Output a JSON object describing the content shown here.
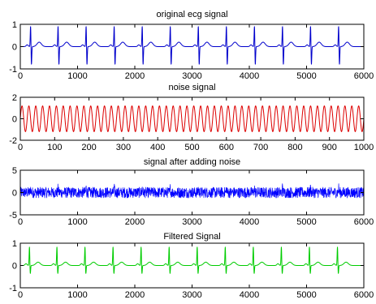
{
  "chart_data": [
    {
      "type": "line",
      "title": "original ecg signal",
      "xlim": [
        0,
        6000
      ],
      "ylim": [
        -1,
        1
      ],
      "xticks": [
        0,
        1000,
        2000,
        3000,
        4000,
        5000,
        6000
      ],
      "yticks": [
        -1,
        0,
        1
      ],
      "grid": false,
      "series": [
        {
          "color": "#0000cc",
          "waveform": "ecg",
          "beat_positions": [
            180,
            660,
            1150,
            1640,
            2130,
            2620,
            3110,
            3600,
            4090,
            4580,
            5070,
            5560
          ],
          "r_peak": 0.95,
          "s_trough": -0.85,
          "baseline": 0.0,
          "t_wave_height": 0.2
        }
      ]
    },
    {
      "type": "line",
      "title": "noise signal",
      "xlim": [
        0,
        1000
      ],
      "ylim": [
        -2,
        2
      ],
      "xticks": [
        0,
        100,
        200,
        300,
        400,
        500,
        600,
        700,
        800,
        900,
        1000
      ],
      "yticks": [
        -2,
        0,
        2
      ],
      "grid": false,
      "series": [
        {
          "color": "#dd0000",
          "waveform": "sine",
          "amplitude": 1.2,
          "period": 20
        }
      ]
    },
    {
      "type": "line",
      "title": "signal after adding noise",
      "xlim": [
        0,
        6000
      ],
      "ylim": [
        -5,
        5
      ],
      "xticks": [
        0,
        1000,
        2000,
        3000,
        4000,
        5000,
        6000
      ],
      "yticks": [
        -5,
        0,
        5
      ],
      "grid": false,
      "series": [
        {
          "color": "#0000ff",
          "waveform": "noisy-ecg",
          "noise_amplitude": 1.2,
          "beat_positions": [
            180,
            660,
            1150,
            1640,
            2130,
            2620,
            3110,
            3600,
            4090,
            4580,
            5070,
            5560
          ],
          "r_peak": 2.0
        }
      ]
    },
    {
      "type": "line",
      "title": "Filtered Signal",
      "xlim": [
        0,
        6000
      ],
      "ylim": [
        -1,
        1
      ],
      "xticks": [
        0,
        1000,
        2000,
        3000,
        4000,
        5000,
        6000
      ],
      "yticks": [
        -1,
        0,
        1
      ],
      "grid": false,
      "series": [
        {
          "color": "#00cc00",
          "waveform": "ecg",
          "beat_positions": [
            160,
            640,
            1130,
            1620,
            2110,
            2600,
            3090,
            3580,
            4070,
            4560,
            5050,
            5540
          ],
          "r_peak": 0.85,
          "s_trough": -0.4,
          "baseline": 0.0,
          "t_wave_height": 0.15
        }
      ]
    }
  ]
}
